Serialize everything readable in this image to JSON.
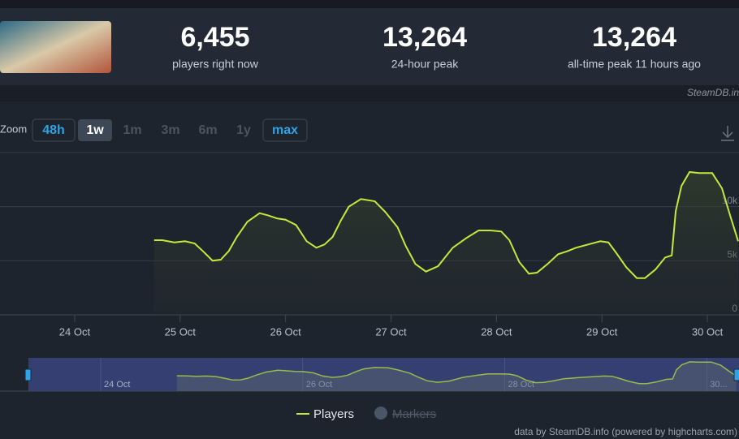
{
  "header": {
    "stats": [
      {
        "value": "6,455",
        "label": "players right now"
      },
      {
        "value": "13,264",
        "label": "24-hour peak"
      },
      {
        "value": "13,264",
        "label": "all-time peak 11 hours ago"
      }
    ],
    "source": "SteamDB.in"
  },
  "zoom": {
    "label": "Zoom",
    "buttons": [
      {
        "label": "48h",
        "state": "enabled"
      },
      {
        "label": "1w",
        "state": "active"
      },
      {
        "label": "1m",
        "state": "disabled"
      },
      {
        "label": "3m",
        "state": "disabled"
      },
      {
        "label": "6m",
        "state": "disabled"
      },
      {
        "label": "1y",
        "state": "disabled"
      },
      {
        "label": "max",
        "state": "outlined"
      }
    ]
  },
  "chart_data": {
    "type": "line",
    "x": [
      24.754,
      24.831,
      24.946,
      25.046,
      25.138,
      25.215,
      25.308,
      25.385,
      25.462,
      25.538,
      25.638,
      25.754,
      25.831,
      25.923,
      26.0,
      26.1,
      26.2,
      26.292,
      26.369,
      26.446,
      26.523,
      26.6,
      26.715,
      26.846,
      26.946,
      27.062,
      27.138,
      27.231,
      27.331,
      27.446,
      27.585,
      27.715,
      27.831,
      27.946,
      28.046,
      28.123,
      28.215,
      28.308,
      28.385,
      28.485,
      28.585,
      28.677,
      28.754,
      28.869,
      28.985,
      29.062,
      29.138,
      29.231,
      29.331,
      29.408,
      29.508,
      29.6,
      29.662,
      29.7,
      29.754,
      29.831,
      29.923,
      30.046,
      30.138,
      30.215,
      30.292
    ],
    "series": [
      {
        "name": "Players",
        "color": "#c3ea3b",
        "values": [
          6900,
          6900,
          6700,
          6800,
          6600,
          5900,
          5000,
          5100,
          5900,
          7200,
          8600,
          9400,
          9200,
          8900,
          8800,
          8300,
          6800,
          6200,
          6500,
          7200,
          8700,
          10000,
          10700,
          10500,
          9500,
          8100,
          6400,
          4700,
          4000,
          4500,
          6200,
          7100,
          7800,
          7800,
          7700,
          6900,
          4900,
          3800,
          3900,
          4700,
          5600,
          5900,
          6200,
          6500,
          6800,
          6700,
          5700,
          4400,
          3400,
          3400,
          4200,
          5300,
          5500,
          9600,
          11900,
          13200,
          13100,
          13100,
          11700,
          9200,
          6800
        ]
      }
    ],
    "legend_extra": {
      "name": "Markers"
    },
    "xlim": [
      23.292,
      30.3
    ],
    "xticks": [
      {
        "value": 24,
        "label": "24 Oct"
      },
      {
        "value": 25,
        "label": "25 Oct"
      },
      {
        "value": 26,
        "label": "26 Oct"
      },
      {
        "value": 27,
        "label": "27 Oct"
      },
      {
        "value": 28,
        "label": "28 Oct"
      },
      {
        "value": 29,
        "label": "29 Oct"
      },
      {
        "value": 30,
        "label": "30 Oct"
      }
    ],
    "ylim": [
      0,
      15000
    ],
    "yticks": [
      0,
      {
        "value": 5000,
        "label": "5k"
      },
      {
        "value": 10000,
        "label": "10k"
      }
    ],
    "navigator_xlim": [
      23.284,
      30.32
    ],
    "navigator_xticks": [
      {
        "value": 24,
        "label": "24 Oct"
      },
      {
        "value": 26,
        "label": "26 Oct"
      },
      {
        "value": 28,
        "label": "28 Oct"
      },
      {
        "value": 30,
        "label": "30..."
      }
    ],
    "credits": "data by SteamDB.info (powered by highcharts.com)"
  }
}
